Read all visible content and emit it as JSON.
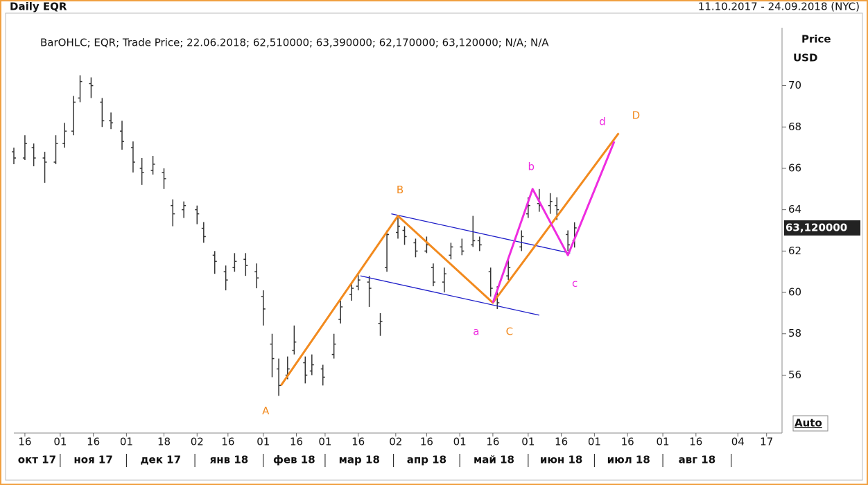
{
  "chart_data": {
    "type": "ohlc",
    "title": "Daily EQR",
    "date_range": "11.10.2017 - 24.09.2018 (NYC)",
    "info": "BarOHLC; EQR; Trade Price; 22.06.2018; 62,510000; 63,390000; 62,170000; 63,120000; N/A; N/A",
    "y_axis_label": "Price",
    "y_axis_unit": "USD",
    "last_price_label": "63,120000",
    "last_price": 63.12,
    "scale_mode": "Auto",
    "color": "#333333",
    "x": [
      "2017-10-11",
      "2017-10-16",
      "2017-10-20",
      "2017-10-25",
      "2017-10-30",
      "2017-11-03",
      "2017-11-07",
      "2017-11-10",
      "2017-11-15",
      "2017-11-20",
      "2017-11-24",
      "2017-11-29",
      "2017-12-04",
      "2017-12-08",
      "2017-12-13",
      "2017-12-18",
      "2017-12-22",
      "2017-12-27",
      "2018-01-02",
      "2018-01-05",
      "2018-01-10",
      "2018-01-15",
      "2018-01-19",
      "2018-01-24",
      "2018-01-29",
      "2018-02-01",
      "2018-02-05",
      "2018-02-08",
      "2018-02-12",
      "2018-02-15",
      "2018-02-20",
      "2018-02-23",
      "2018-02-28",
      "2018-03-05",
      "2018-03-08",
      "2018-03-13",
      "2018-03-16",
      "2018-03-21",
      "2018-03-26",
      "2018-03-29",
      "2018-04-03",
      "2018-04-06",
      "2018-04-11",
      "2018-04-16",
      "2018-04-19",
      "2018-04-24",
      "2018-04-27",
      "2018-05-02",
      "2018-05-07",
      "2018-05-10",
      "2018-05-15",
      "2018-05-18",
      "2018-05-23",
      "2018-05-29",
      "2018-06-01",
      "2018-06-06",
      "2018-06-11",
      "2018-06-14",
      "2018-06-19",
      "2018-06-22"
    ],
    "open": [
      66.8,
      66.5,
      67.0,
      66.5,
      66.3,
      67.2,
      67.8,
      69.4,
      70.1,
      69.2,
      68.3,
      67.8,
      67.0,
      66.0,
      65.9,
      65.8,
      64.2,
      64.0,
      64.0,
      63.1,
      61.8,
      61.0,
      61.2,
      61.6,
      61.0,
      59.8,
      57.5,
      56.3,
      56.0,
      57.2,
      56.6,
      56.2,
      56.3,
      57.0,
      58.7,
      59.9,
      60.3,
      60.5,
      58.5,
      61.2,
      62.9,
      63.0,
      62.4,
      62.0,
      61.2,
      60.5,
      61.8,
      62.2,
      62.3,
      62.5,
      61.0,
      59.8,
      60.8,
      62.2,
      63.8,
      64.3,
      64.2,
      64.2,
      62.8,
      62.51
    ],
    "high": [
      67.0,
      67.6,
      67.2,
      66.8,
      67.6,
      68.2,
      69.5,
      70.5,
      70.4,
      69.4,
      68.7,
      68.3,
      67.3,
      66.5,
      66.6,
      66.0,
      64.5,
      64.4,
      64.2,
      63.4,
      62.0,
      61.3,
      61.9,
      61.9,
      61.4,
      60.1,
      58.0,
      56.8,
      56.9,
      58.4,
      56.9,
      57.0,
      56.5,
      58.0,
      59.6,
      60.5,
      60.9,
      60.8,
      59.0,
      63.0,
      63.6,
      63.2,
      62.6,
      62.7,
      61.4,
      61.2,
      62.4,
      62.6,
      63.7,
      62.7,
      61.2,
      60.3,
      61.6,
      63.0,
      64.6,
      65.0,
      64.8,
      64.6,
      63.0,
      63.39
    ],
    "low": [
      66.2,
      66.4,
      66.1,
      65.3,
      66.2,
      67.0,
      67.6,
      69.2,
      69.4,
      68.0,
      67.9,
      66.9,
      65.8,
      65.2,
      65.7,
      65.0,
      63.2,
      63.6,
      63.3,
      62.4,
      60.9,
      60.1,
      61.0,
      60.8,
      60.2,
      58.4,
      55.9,
      55.0,
      55.8,
      57.0,
      55.6,
      56.0,
      55.5,
      56.8,
      58.5,
      59.6,
      60.1,
      59.3,
      57.9,
      61.0,
      62.6,
      62.3,
      61.7,
      61.9,
      60.3,
      60.0,
      61.6,
      61.8,
      62.2,
      62.0,
      59.8,
      59.2,
      60.6,
      62.0,
      63.6,
      63.9,
      63.8,
      63.5,
      62.0,
      62.17
    ],
    "close": [
      66.5,
      67.2,
      66.5,
      66.3,
      67.2,
      67.8,
      69.2,
      70.2,
      70.0,
      68.3,
      68.2,
      67.3,
      66.3,
      65.8,
      66.2,
      65.5,
      63.8,
      64.2,
      63.8,
      62.7,
      61.5,
      60.6,
      61.5,
      61.3,
      60.7,
      59.2,
      56.8,
      55.5,
      56.3,
      57.6,
      56.0,
      56.5,
      55.9,
      57.5,
      59.3,
      60.2,
      60.6,
      60.2,
      58.6,
      62.8,
      63.2,
      62.7,
      62.0,
      62.3,
      60.5,
      60.9,
      62.2,
      62.0,
      62.5,
      62.3,
      60.2,
      59.5,
      61.2,
      62.7,
      64.2,
      64.2,
      64.4,
      64.0,
      62.3,
      63.12
    ],
    "xlim": [
      "2017-10-11",
      "2018-09-24"
    ],
    "xticks": [
      {
        "value": "2017-10-16",
        "label": "16"
      },
      {
        "value": "2017-11-01",
        "label": "01"
      },
      {
        "value": "2017-11-16",
        "label": "16"
      },
      {
        "value": "2017-12-01",
        "label": "01"
      },
      {
        "value": "2017-12-18",
        "label": "18"
      },
      {
        "value": "2018-01-02",
        "label": "02"
      },
      {
        "value": "2018-01-16",
        "label": "16"
      },
      {
        "value": "2018-02-01",
        "label": "01"
      },
      {
        "value": "2018-02-16",
        "label": "16"
      },
      {
        "value": "2018-03-01",
        "label": "01"
      },
      {
        "value": "2018-03-16",
        "label": "16"
      },
      {
        "value": "2018-04-02",
        "label": "02"
      },
      {
        "value": "2018-04-16",
        "label": "16"
      },
      {
        "value": "2018-05-01",
        "label": "01"
      },
      {
        "value": "2018-05-16",
        "label": "16"
      },
      {
        "value": "2018-06-01",
        "label": "01"
      },
      {
        "value": "2018-06-16",
        "label": "16"
      },
      {
        "value": "2018-07-01",
        "label": "01"
      },
      {
        "value": "2018-07-16",
        "label": "16"
      },
      {
        "value": "2018-08-01",
        "label": "01"
      },
      {
        "value": "2018-08-16",
        "label": "16"
      },
      {
        "value": "2018-09-04",
        "label": "04"
      },
      {
        "value": "2018-09-17",
        "label": "17"
      }
    ],
    "months": [
      {
        "start": "2017-10-11",
        "label": "окт 17"
      },
      {
        "start": "2017-11-01",
        "label": "ноя 17"
      },
      {
        "start": "2017-12-01",
        "label": "дек 17"
      },
      {
        "start": "2018-01-01",
        "label": "янв 18"
      },
      {
        "start": "2018-02-01",
        "label": "фев 18"
      },
      {
        "start": "2018-03-01",
        "label": "мар 18"
      },
      {
        "start": "2018-04-01",
        "label": "апр 18"
      },
      {
        "start": "2018-05-01",
        "label": "май 18"
      },
      {
        "start": "2018-06-01",
        "label": "июн 18"
      },
      {
        "start": "2018-07-01",
        "label": "июл 18"
      },
      {
        "start": "2018-08-01",
        "label": "авг 18"
      }
    ],
    "months_end": "2018-09-01",
    "ylim": [
      53.2,
      72.8
    ],
    "yticks": [
      56,
      58,
      60,
      62,
      64,
      66,
      68,
      70
    ],
    "waves": [
      {
        "color": "#f28a1e",
        "points": [
          {
            "x": "2018-02-09",
            "y": 55.5,
            "label": "A"
          },
          {
            "x": "2018-04-03",
            "y": 63.7,
            "label": "B"
          },
          {
            "x": "2018-05-16",
            "y": 59.5,
            "label": "C"
          },
          {
            "x": "2018-07-12",
            "y": 67.7,
            "label": "D"
          }
        ]
      },
      {
        "color": "#ee2ce0",
        "points": [
          {
            "x": "2018-05-16",
            "y": 59.5,
            "label": "a"
          },
          {
            "x": "2018-06-03",
            "y": 65.0,
            "label": "b"
          },
          {
            "x": "2018-06-19",
            "y": 61.8,
            "label": "c"
          },
          {
            "x": "2018-07-10",
            "y": 67.3,
            "label": "d"
          }
        ]
      }
    ],
    "channel": [
      {
        "color": "#1c1cc8",
        "x": [
          "2018-03-31",
          "2018-06-20"
        ],
        "y": [
          63.8,
          61.9
        ]
      },
      {
        "color": "#1c1cc8",
        "x": [
          "2018-03-17",
          "2018-06-06"
        ],
        "y": [
          60.8,
          58.9
        ]
      }
    ]
  }
}
